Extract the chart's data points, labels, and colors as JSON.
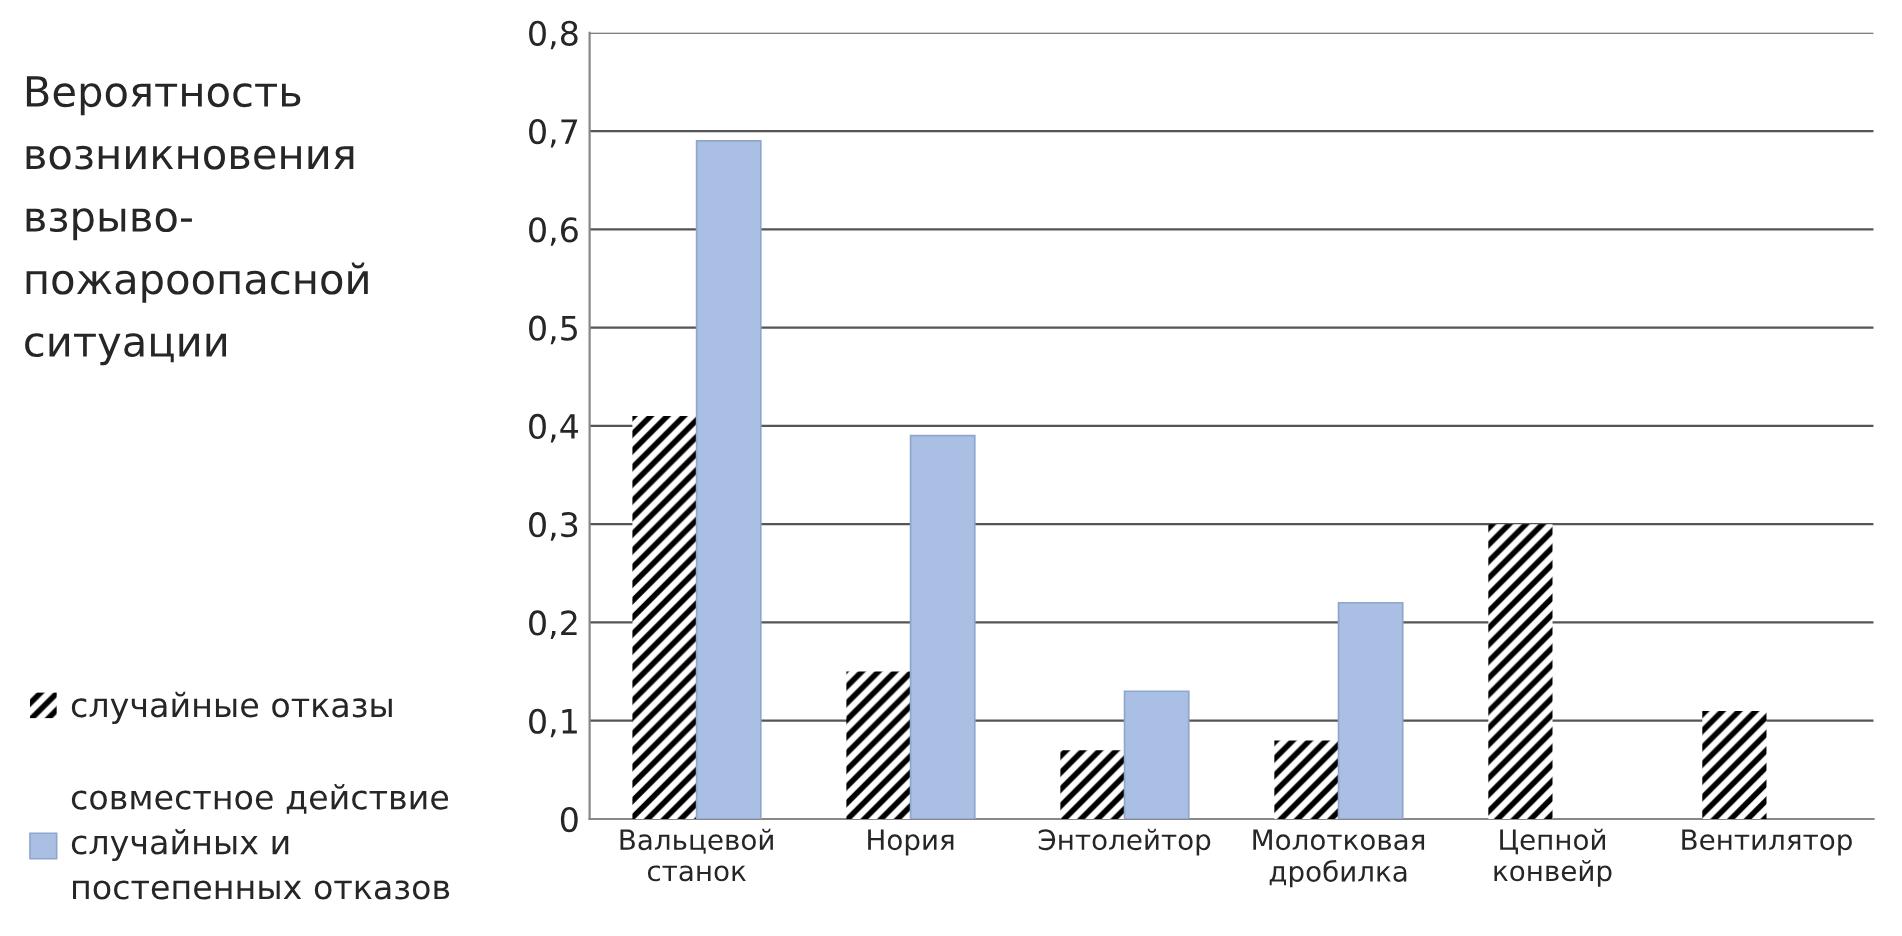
{
  "chart_data": {
    "type": "bar",
    "ylabel": "Вероятность\nвозникновения\nвзрыво-\nпожароопасной\nситуации",
    "categories": [
      "Вальцевой\nстанок",
      "Нория",
      "Энтолейтор",
      "Молотковая\nдробилка",
      "Цепной\nконвейр",
      "Вентилятор"
    ],
    "series": [
      {
        "name": "случайные отказы",
        "color": "#000000",
        "values": [
          0.41,
          0.15,
          0.07,
          0.08,
          0.3,
          0.11
        ]
      },
      {
        "name": "совместное действие\nслучайных и\nпостепенных отказов",
        "color": "#a9c0e4",
        "values": [
          0.69,
          0.39,
          0.13,
          0.22,
          null,
          null
        ]
      }
    ],
    "ylim": [
      0,
      0.8
    ],
    "yticks": [
      {
        "value": 0,
        "label": "0"
      },
      {
        "value": 0.1,
        "label": "0,1"
      },
      {
        "value": 0.2,
        "label": "0,2"
      },
      {
        "value": 0.3,
        "label": "0,3"
      },
      {
        "value": 0.4,
        "label": "0,4"
      },
      {
        "value": 0.5,
        "label": "0,5"
      },
      {
        "value": 0.6,
        "label": "0,6"
      },
      {
        "value": 0.7,
        "label": "0,7"
      },
      {
        "value": 0.8,
        "label": "0,8"
      }
    ],
    "grid": "y",
    "legend": "left"
  }
}
